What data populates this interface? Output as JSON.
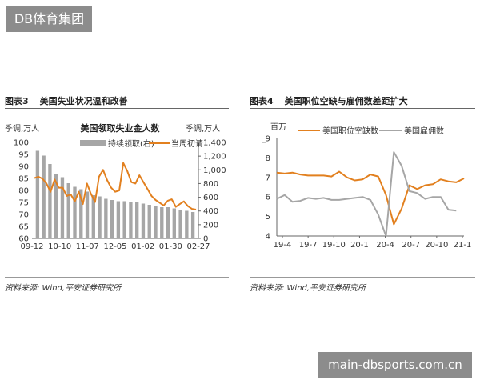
{
  "watermark_top": "DB体育集团",
  "watermark_bottom": "main-dbsports.com.cn",
  "left_panel": {
    "fig_label": "图表3",
    "title": "美国失业状况温和改善",
    "source": "资料来源: Wind,平安证券研究所"
  },
  "right_panel": {
    "fig_label": "图表4",
    "title": "美国职位空缺与雇佣数差距扩大",
    "source": "资料来源: Wind,平安证券研究所"
  },
  "chart_data": [
    {
      "type": "bar+line",
      "title": "美国领取失业金人数",
      "left_axis_label": "季调,万人",
      "right_axis_label": "季调,万人",
      "x_tick_labels": [
        "09-12",
        "10-10",
        "11-07",
        "12-05",
        "01-02",
        "01-30",
        "02-27"
      ],
      "left_ylim": [
        60,
        100
      ],
      "left_ticks": [
        60,
        65,
        70,
        75,
        80,
        85,
        90,
        95,
        100
      ],
      "right_ylim": [
        0,
        1400
      ],
      "right_ticks": [
        "0",
        "200",
        "400",
        "600",
        "800",
        "1,000",
        "1,200",
        "1,400"
      ],
      "series": [
        {
          "name": "持续领取(右)",
          "kind": "bar",
          "axis": "left",
          "color": "#a6a6a6",
          "values": [
            96.5,
            94.5,
            91,
            87,
            85.5,
            83,
            81.5,
            80.5,
            79.5,
            78,
            77.5,
            76.5,
            76,
            75.5,
            75.5,
            75,
            75,
            74.5,
            74,
            73.5,
            73,
            73,
            72.5,
            72,
            71.5,
            71
          ]
        },
        {
          "name": "当周初请",
          "kind": "line",
          "axis": "right",
          "color": "#e2801f",
          "values": [
            880,
            900,
            870,
            800,
            680,
            860,
            740,
            740,
            620,
            640,
            540,
            680,
            500,
            800,
            650,
            530,
            900,
            1000,
            850,
            740,
            680,
            700,
            1100,
            980,
            820,
            800,
            920,
            820,
            720,
            620,
            560,
            520,
            480,
            550,
            570,
            460,
            500,
            540,
            470,
            430,
            420
          ]
        }
      ]
    },
    {
      "type": "line",
      "left_axis_label": "百万",
      "x_tick_labels": [
        "19-4",
        "19-7",
        "19-10",
        "20-1",
        "20-4",
        "20-7",
        "20-10",
        "21-1"
      ],
      "ylim": [
        4,
        9
      ],
      "y_ticks": [
        4,
        5,
        6,
        7,
        8,
        9
      ],
      "series": [
        {
          "name": "美国职位空缺数",
          "color": "#e2801f",
          "values": [
            7.25,
            7.2,
            7.25,
            7.15,
            7.1,
            7.1,
            7.1,
            7.05,
            7.3,
            7.0,
            6.85,
            6.9,
            7.15,
            7.05,
            6.1,
            4.6,
            5.4,
            6.6,
            6.4,
            6.6,
            6.65,
            6.9,
            6.8,
            6.75,
            6.95
          ]
        },
        {
          "name": "美国雇佣数",
          "color": "#a6a6a6",
          "values": [
            5.9,
            6.1,
            5.75,
            5.8,
            5.95,
            5.9,
            5.95,
            5.85,
            5.85,
            5.9,
            5.95,
            6.0,
            5.85,
            5.1,
            4.0,
            8.3,
            7.6,
            6.3,
            6.2,
            5.9,
            6.0,
            6.0,
            5.35,
            5.3
          ]
        }
      ]
    }
  ]
}
